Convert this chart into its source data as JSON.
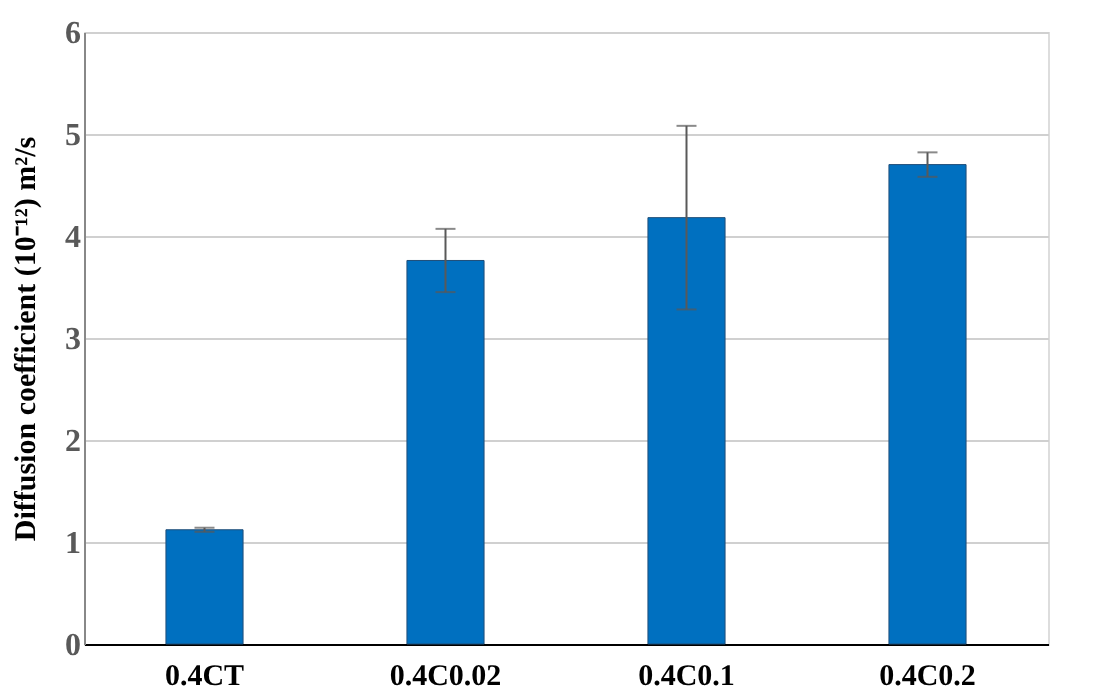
{
  "chart_data": {
    "type": "bar",
    "ylabel": "Diffusion coefficient (10⁻¹²) m²/s",
    "categories": [
      "0.4CT",
      "0.4C0.02",
      "0.4C0.1",
      "0.4C0.2"
    ],
    "values": [
      1.12,
      3.76,
      4.18,
      4.7
    ],
    "errors": [
      0.02,
      0.31,
      0.9,
      0.12
    ],
    "color": "#0070c0",
    "ylim": [
      0,
      6
    ],
    "yticks": [
      0,
      1,
      2,
      3,
      4,
      5,
      6
    ],
    "grid": "y"
  }
}
